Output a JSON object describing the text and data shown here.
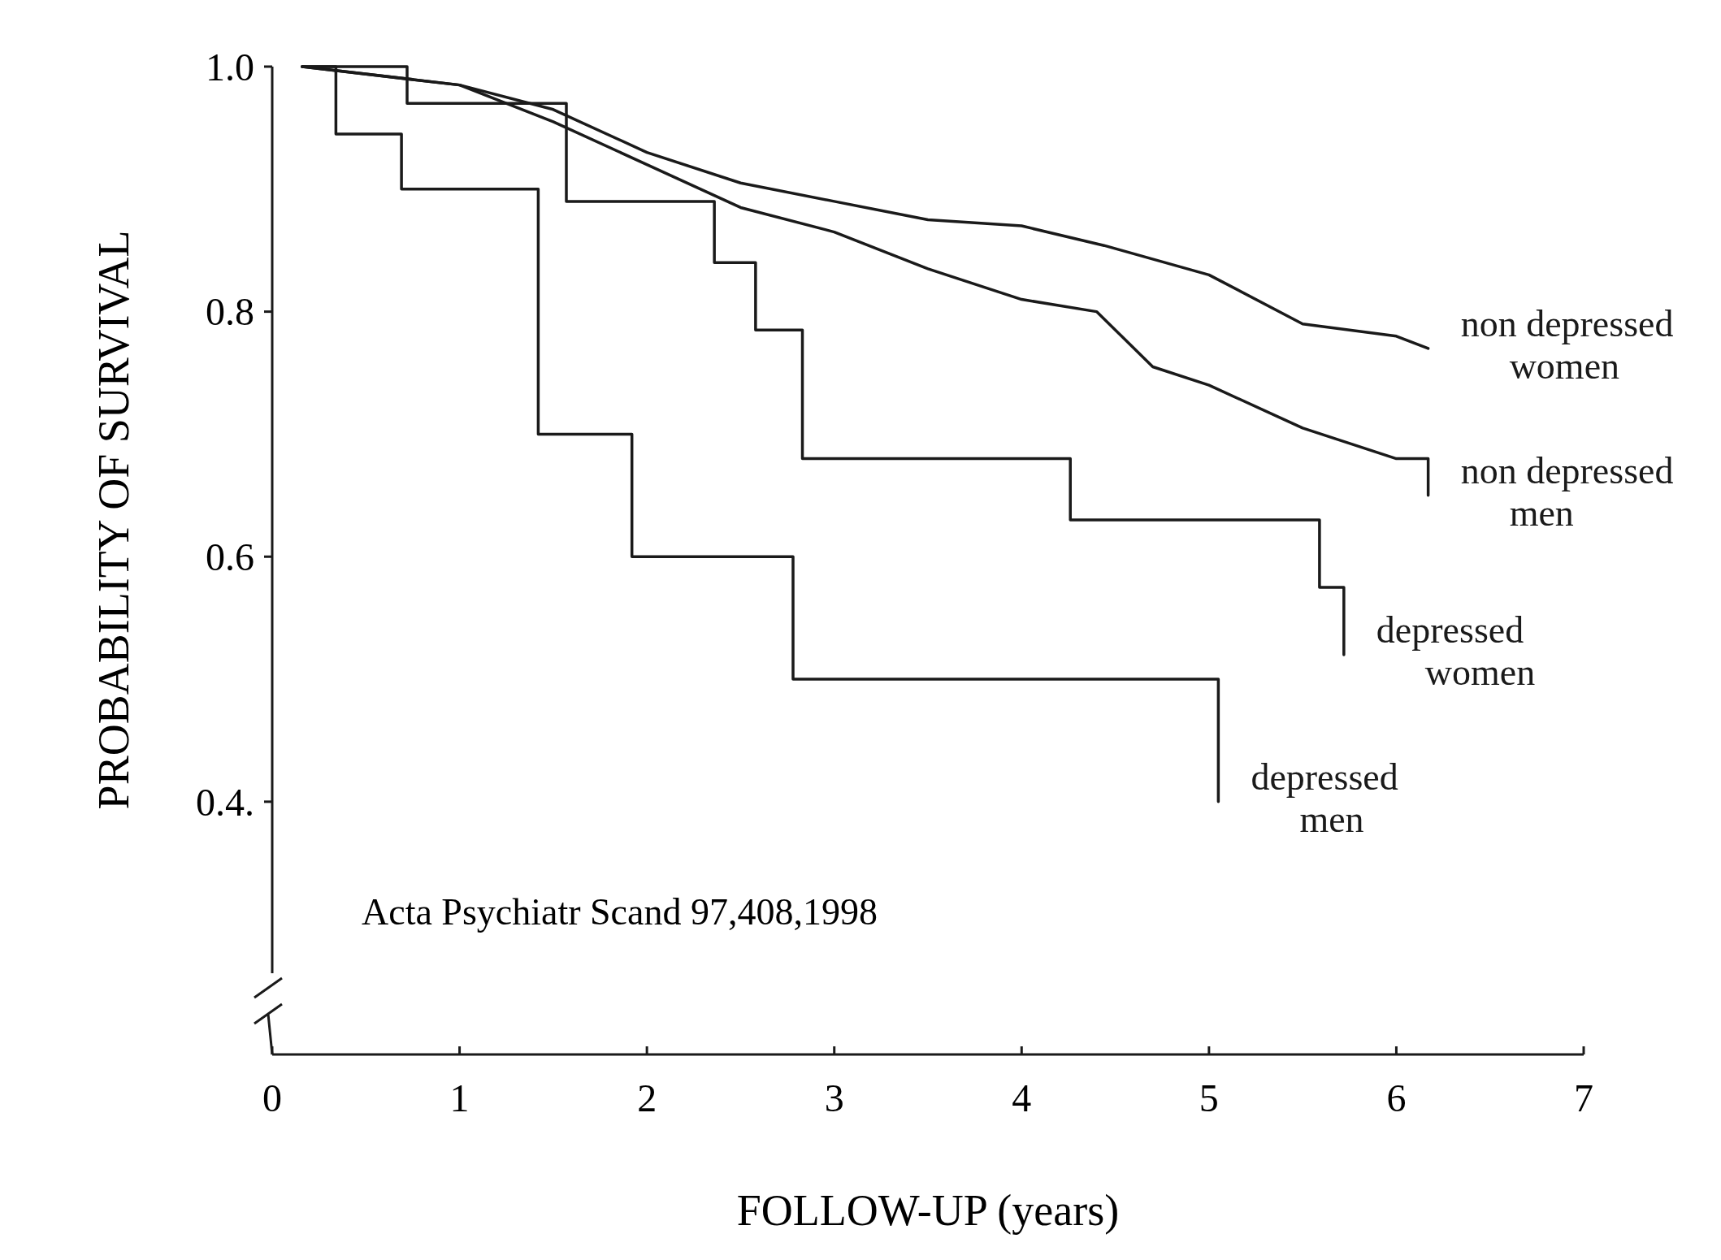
{
  "chart_data": {
    "type": "step",
    "xlabel": "FOLLOW-UP  (years)",
    "ylabel": "PROBABILITY OF SURVIVAL",
    "xlim": [
      0,
      7
    ],
    "xticks": [
      0,
      1,
      2,
      3,
      4,
      5,
      6,
      7
    ],
    "ylim": [
      0.26,
      1.0
    ],
    "yticks": [
      {
        "value": 0.4,
        "label": "0.4."
      },
      0.6,
      0.8,
      {
        "value": 1.0,
        "label": "1.0"
      }
    ],
    "grid": false,
    "line_style": "solid",
    "marker": "none",
    "annotations": [
      "Acta Psychiatr Scand 97,408,1998"
    ],
    "series": [
      {
        "name": "non depressed women",
        "type": "line",
        "color": "#1a1a1a",
        "x": [
          0.16,
          1,
          1.5,
          2,
          2.5,
          3,
          3.5,
          4,
          4.44,
          5,
          5.5,
          6,
          6.17
        ],
        "values": [
          1,
          0.985,
          0.965,
          0.93,
          0.905,
          0.89,
          0.875,
          0.87,
          0.854,
          0.83,
          0.79,
          0.78,
          0.77
        ]
      },
      {
        "name": "non depressed men",
        "type": "line",
        "color": "#1a1a1a",
        "x": [
          0.16,
          1,
          1.5,
          2,
          2.5,
          3,
          3.5,
          4,
          4.4,
          4.7,
          5,
          5.5,
          6,
          6.17,
          6.17
        ],
        "values": [
          1,
          0.985,
          0.955,
          0.92,
          0.885,
          0.865,
          0.835,
          0.81,
          0.8,
          0.755,
          0.74,
          0.705,
          0.68,
          0.68,
          0.65
        ]
      },
      {
        "name": "depressed women",
        "type": "step",
        "color": "#1a1a1a",
        "x": [
          0.16,
          0.72,
          1.57,
          2.36,
          2.58,
          2.83,
          4.26,
          5.59,
          5.72
        ],
        "values": [
          1,
          0.97,
          0.89,
          0.84,
          0.785,
          0.68,
          0.63,
          0.575,
          0.52
        ]
      },
      {
        "name": "depressed men",
        "type": "step",
        "color": "#1a1a1a",
        "x": [
          0.16,
          0.34,
          0.69,
          1.42,
          1.92,
          2.78,
          5.05
        ],
        "values": [
          1,
          0.945,
          0.9,
          0.7,
          0.6,
          0.5,
          0.4
        ]
      }
    ]
  }
}
